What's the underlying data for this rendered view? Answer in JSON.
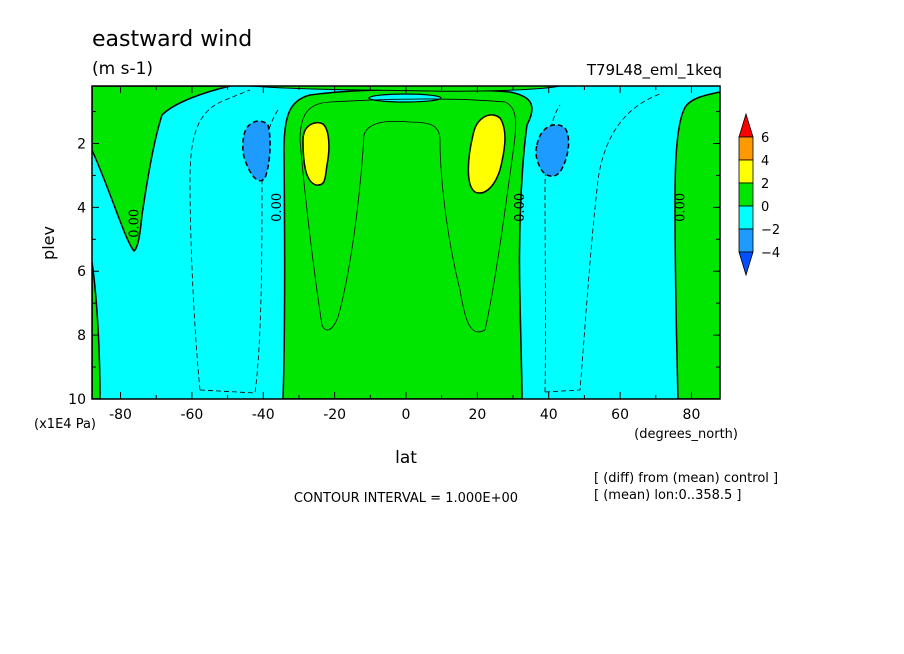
{
  "chart_data": {
    "type": "heatmap",
    "title": "eastward wind",
    "units": "(m s-1)",
    "run_label": "T79L48_eml_1keq",
    "xlabel": "lat",
    "x_units": "(degrees_north)",
    "ylabel": "plev",
    "y_units": "(x1E4 Pa)",
    "xlim": [
      -88,
      88
    ],
    "ylim": [
      10,
      0.2
    ],
    "x_ticks": [
      "-80",
      "-60",
      "-40",
      "-20",
      "0",
      "20",
      "40",
      "60",
      "80"
    ],
    "x_tick_values": [
      -80,
      -60,
      -40,
      -20,
      0,
      20,
      40,
      60,
      80
    ],
    "y_ticks": [
      "2",
      "4",
      "6",
      "8",
      "10"
    ],
    "y_tick_values": [
      2,
      4,
      6,
      8,
      10
    ],
    "contour_interval_text": "CONTOUR INTERVAL = 1.000E+00",
    "notes": [
      "[ (diff) from (mean) control ]",
      "[ (mean) lon:0..358.5 ]"
    ],
    "contour_labels": [
      {
        "text": "0.00",
        "lat": -75,
        "plev": 4.5
      },
      {
        "text": "0.00",
        "lat": -35,
        "plev": 4.0
      },
      {
        "text": "0.00",
        "lat": 33,
        "plev": 4.0
      },
      {
        "text": "0.00",
        "lat": 78,
        "plev": 4.0
      }
    ],
    "legend": {
      "position": "right",
      "labels": [
        "6",
        "4",
        "2",
        "0",
        "−2",
        "−4"
      ],
      "levels": [
        6,
        4,
        2,
        0,
        -2,
        -4
      ],
      "colors": [
        "#ff0000",
        "#ff9900",
        "#ffff00",
        "#00e600",
        "#00ffff",
        "#1e9bff",
        "#0050ff"
      ]
    },
    "fill_colors": {
      "pos_0_2": "#00e600",
      "neg_0_2": "#00ffff",
      "neg_2_4": "#1e9bff",
      "pos_2_4": "#ffff00"
    },
    "regions": [
      {
        "range": "2 to 4",
        "lat": [
          -29,
          -23
        ],
        "plev": [
          1.2,
          3.2
        ]
      },
      {
        "range": "2 to 4",
        "lat": [
          18,
          26
        ],
        "plev": [
          1.0,
          3.5
        ]
      },
      {
        "range": "-4 to -2",
        "lat": [
          -46,
          -39
        ],
        "plev": [
          1.2,
          3.1
        ]
      },
      {
        "range": "-4 to -2",
        "lat": [
          38,
          46
        ],
        "plev": [
          1.2,
          3.1
        ]
      },
      {
        "range": "0 to 2",
        "lat": [
          -33,
          33
        ],
        "plev": [
          0.5,
          10
        ]
      },
      {
        "range": "0 to 2",
        "lat": [
          -88,
          -72
        ],
        "plev": [
          0.2,
          5.3
        ]
      },
      {
        "range": "0 to 2",
        "lat": [
          76,
          88
        ],
        "plev": [
          1,
          10
        ]
      }
    ]
  }
}
